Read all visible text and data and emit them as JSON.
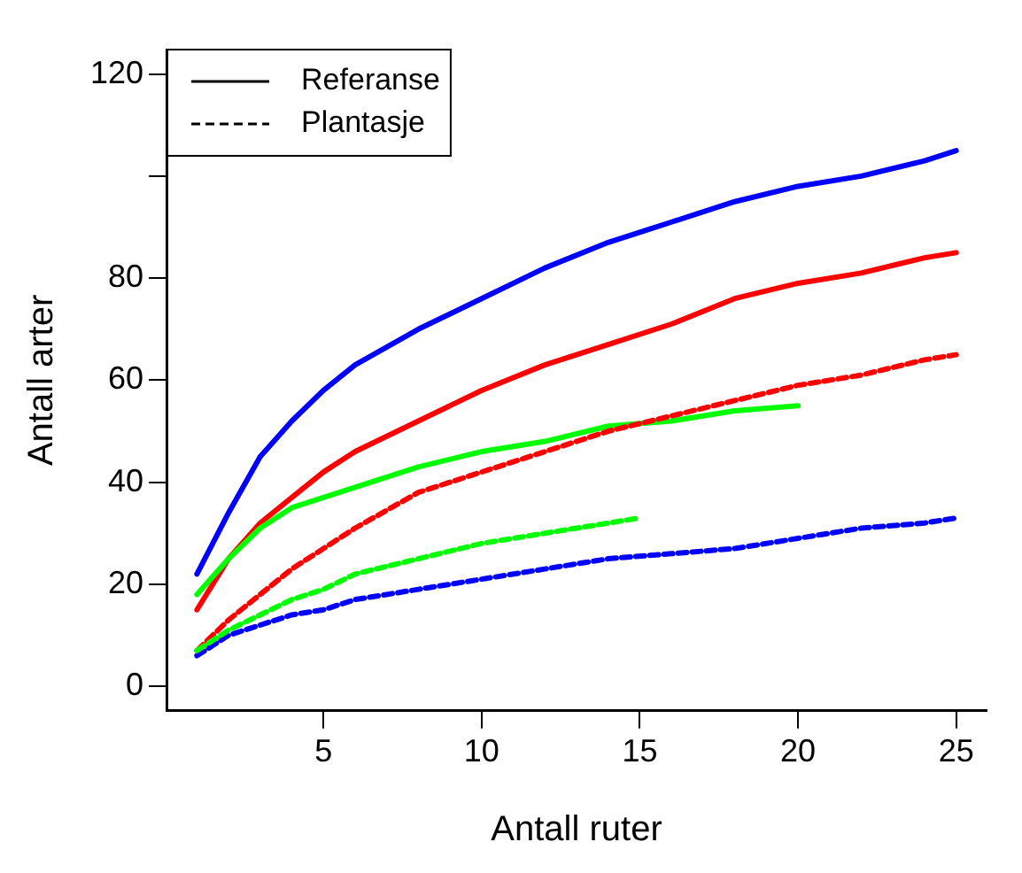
{
  "chart_data": {
    "type": "line",
    "xlabel": "Antall ruter",
    "ylabel": "Antall arter",
    "xlim": [
      0.04,
      25.96
    ],
    "ylim": [
      -4.8,
      124.8
    ],
    "xticks": [
      5,
      10,
      15,
      20,
      25
    ],
    "yticks": [
      0,
      20,
      40,
      60,
      80,
      {
        "value": 100,
        "label": null
      },
      120
    ],
    "grid": false,
    "marker": "none",
    "annotations": [
      "Referanse",
      "Plantasje"
    ],
    "series": [
      {
        "color": "#0000ff",
        "line_style": "solid",
        "x": [
          1,
          2,
          3,
          4,
          5,
          6,
          8,
          10,
          12,
          14,
          16,
          18,
          20,
          22,
          24,
          25
        ],
        "values": [
          22,
          34,
          45,
          52,
          58,
          63,
          70,
          76,
          82,
          87,
          91,
          95,
          98,
          100,
          103,
          105
        ]
      },
      {
        "color": "#ff0000",
        "line_style": "solid",
        "x": [
          1,
          2,
          3,
          4,
          5,
          6,
          8,
          10,
          12,
          14,
          16,
          18,
          20,
          22,
          24,
          25
        ],
        "values": [
          15,
          25,
          32,
          37,
          42,
          46,
          52,
          58,
          63,
          67,
          71,
          76,
          79,
          81,
          84,
          85
        ]
      },
      {
        "color": "#00ff00",
        "line_style": "solid",
        "x": [
          1,
          2,
          3,
          4,
          5,
          6,
          8,
          10,
          12,
          14,
          16,
          18,
          20
        ],
        "values": [
          18,
          25,
          31,
          35,
          37,
          39,
          43,
          46,
          48,
          51,
          52,
          54,
          55
        ]
      },
      {
        "color": "#0000ff",
        "line_style": "dashed",
        "x": [
          1,
          2,
          3,
          4,
          5,
          6,
          8,
          10,
          12,
          14,
          16,
          18,
          20,
          22,
          24,
          25
        ],
        "values": [
          6,
          10,
          12,
          14,
          15,
          17,
          19,
          21,
          23,
          25,
          26,
          27,
          29,
          31,
          32,
          33
        ]
      },
      {
        "color": "#ff0000",
        "line_style": "dashed",
        "x": [
          1,
          2,
          3,
          4,
          5,
          6,
          8,
          10,
          12,
          14,
          16,
          18,
          20,
          22,
          24,
          25
        ],
        "values": [
          7,
          13,
          18,
          23,
          27,
          31,
          38,
          42,
          46,
          50,
          53,
          56,
          59,
          61,
          64,
          65
        ]
      },
      {
        "color": "#00ff00",
        "line_style": "dashed",
        "x": [
          1,
          2,
          3,
          4,
          5,
          6,
          8,
          10,
          12,
          14,
          15
        ],
        "values": [
          7,
          11,
          14,
          17,
          19,
          22,
          25,
          28,
          30,
          32,
          33
        ]
      }
    ]
  }
}
